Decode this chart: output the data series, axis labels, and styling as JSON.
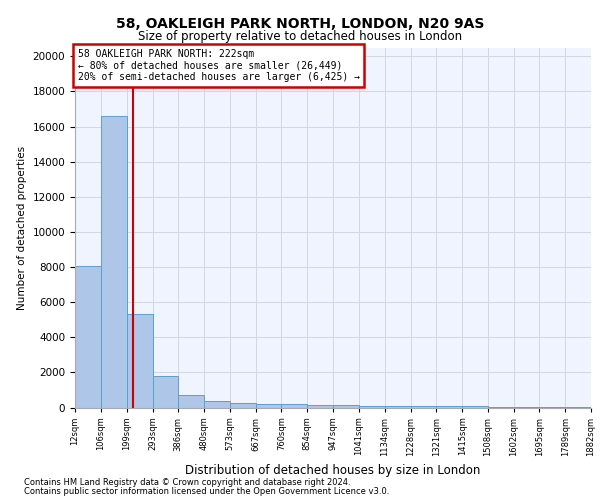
{
  "title_line1": "58, OAKLEIGH PARK NORTH, LONDON, N20 9AS",
  "title_line2": "Size of property relative to detached houses in London",
  "xlabel": "Distribution of detached houses by size in London",
  "ylabel": "Number of detached properties",
  "annotation_line1": "58 OAKLEIGH PARK NORTH: 222sqm",
  "annotation_line2": "← 80% of detached houses are smaller (26,449)",
  "annotation_line3": "20% of semi-detached houses are larger (6,425) →",
  "property_line_x": 222,
  "bar_edges": [
    12,
    106,
    199,
    293,
    386,
    480,
    573,
    667,
    760,
    854,
    947,
    1041,
    1134,
    1228,
    1321,
    1415,
    1508,
    1602,
    1695,
    1789,
    1882
  ],
  "bar_heights": [
    8050,
    16600,
    5300,
    1780,
    700,
    350,
    250,
    200,
    175,
    150,
    130,
    110,
    90,
    80,
    70,
    60,
    50,
    40,
    30,
    20
  ],
  "bar_color": "#aec6e8",
  "bar_edge_color": "#5a9fd4",
  "grid_color": "#d0d8e8",
  "vline_color": "#cc0000",
  "annotation_box_color": "#cc0000",
  "background_color": "#f0f4ff",
  "footer_line1": "Contains HM Land Registry data © Crown copyright and database right 2024.",
  "footer_line2": "Contains public sector information licensed under the Open Government Licence v3.0.",
  "tick_labels": [
    "12sqm",
    "106sqm",
    "199sqm",
    "293sqm",
    "386sqm",
    "480sqm",
    "573sqm",
    "667sqm",
    "760sqm",
    "854sqm",
    "947sqm",
    "1041sqm",
    "1134sqm",
    "1228sqm",
    "1321sqm",
    "1415sqm",
    "1508sqm",
    "1602sqm",
    "1695sqm",
    "1789sqm",
    "1882sqm"
  ],
  "ylim": [
    0,
    20500
  ],
  "yticks": [
    0,
    2000,
    4000,
    6000,
    8000,
    10000,
    12000,
    14000,
    16000,
    18000,
    20000
  ]
}
